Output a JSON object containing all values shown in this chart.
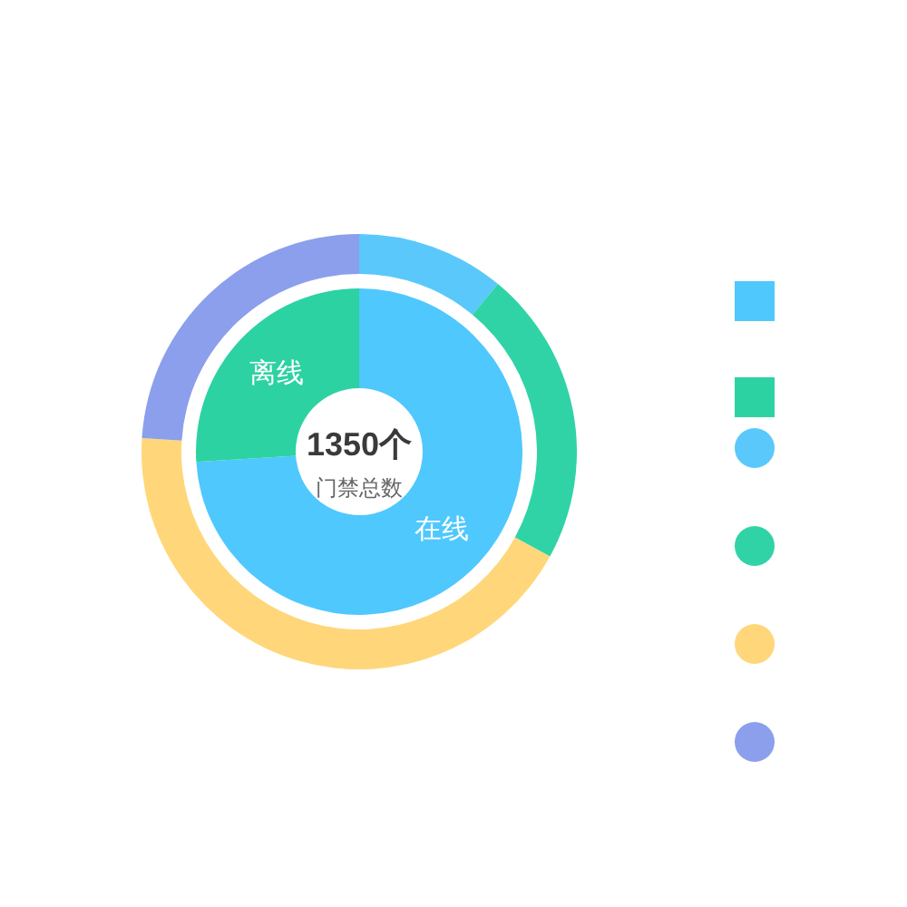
{
  "chart_data": [
    {
      "type": "donut",
      "title": "1350个",
      "subtitle": "门禁总数",
      "categories": [
        "在线",
        "离线"
      ],
      "values": [
        74,
        26
      ],
      "colors": [
        "#4fc8fd",
        "#2dd2a2"
      ]
    },
    {
      "type": "donut",
      "categories": [
        null,
        null,
        null,
        null
      ],
      "values": [
        11,
        22,
        43,
        24
      ],
      "colors": [
        "#5ac8fa",
        "#30d3a5",
        "#ffd77a",
        "#8b9fec"
      ]
    }
  ]
}
